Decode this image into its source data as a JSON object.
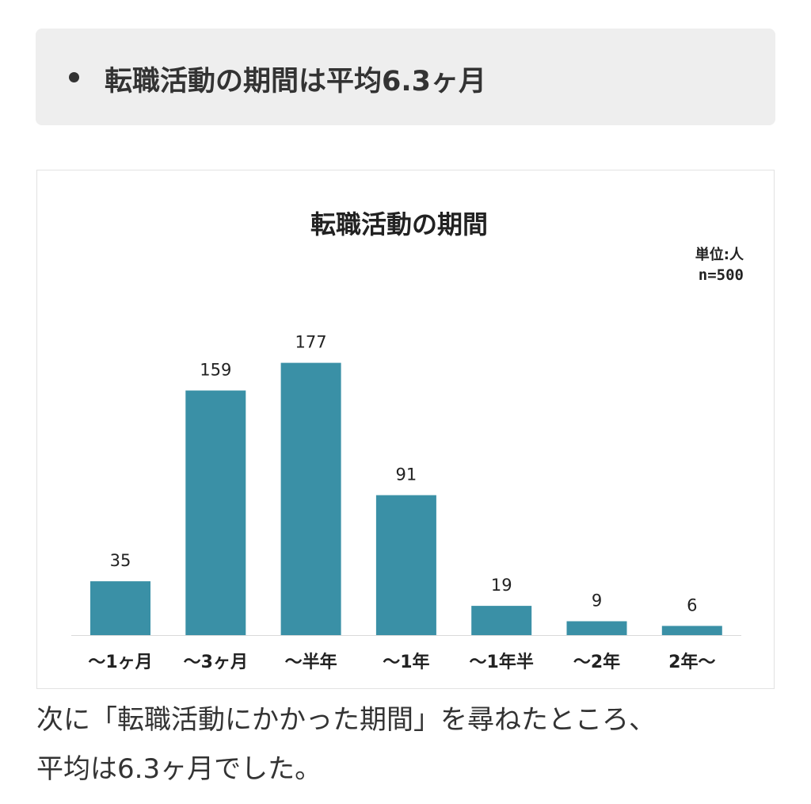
{
  "summary": {
    "text": "転職活動の期間は平均6.3ヶ月"
  },
  "chart_data": {
    "type": "bar",
    "title": "転職活動の期間",
    "unit_label": "単位:人",
    "n_label": "n=500",
    "categories": [
      "〜1ヶ月",
      "〜3ヶ月",
      "〜半年",
      "〜1年",
      "〜1年半",
      "〜2年",
      "2年〜"
    ],
    "values": [
      35,
      159,
      177,
      91,
      19,
      9,
      6
    ],
    "value_labels": [
      "35",
      "159",
      "177",
      "91",
      "19",
      "9",
      "6"
    ],
    "ylim": [
      0,
      200
    ],
    "grid": false,
    "legend": "none",
    "bar_color": "#3a90a6"
  },
  "body": {
    "line1": "次に「転職活動にかかった期間」を尋ねたところ、",
    "line2": "平均は6.3ヶ月でした。"
  }
}
